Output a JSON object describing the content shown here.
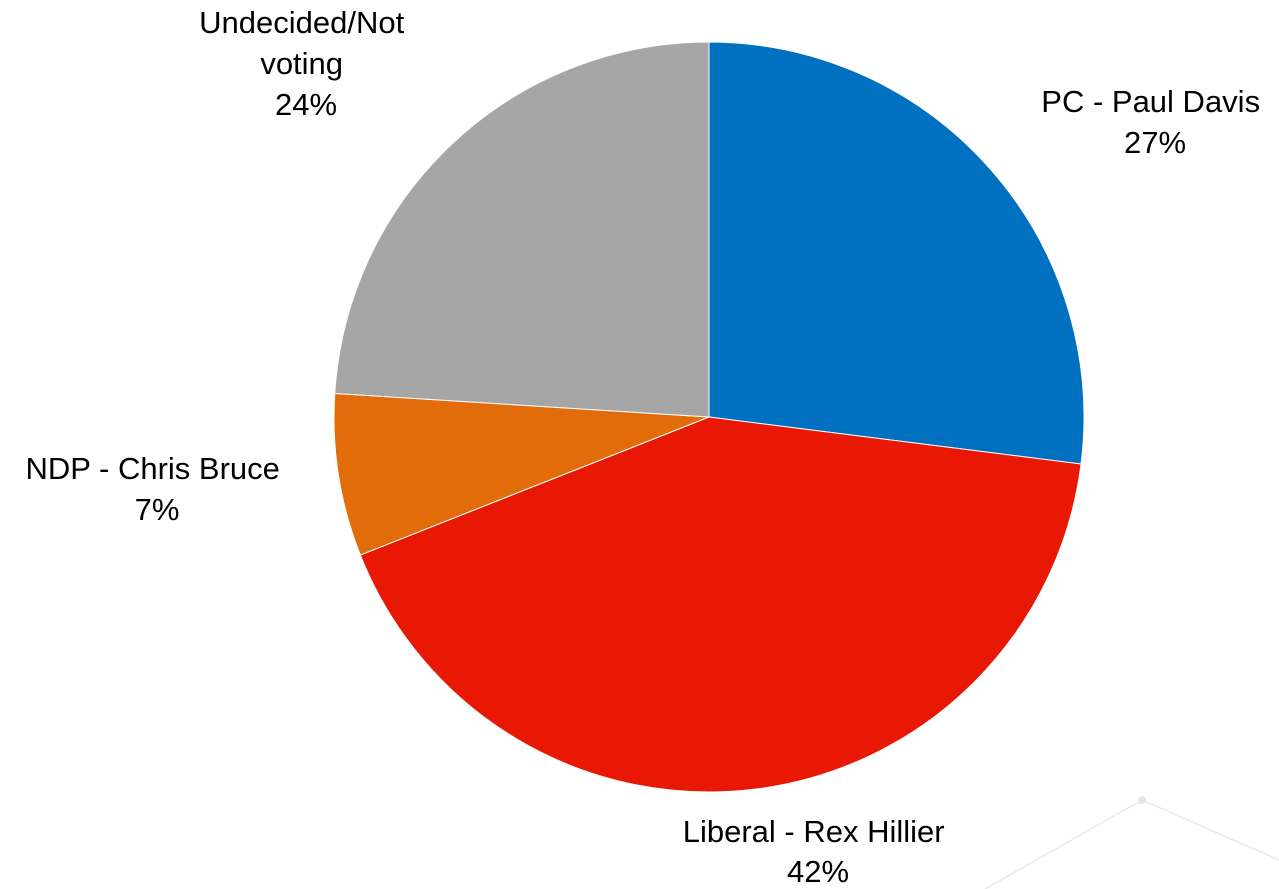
{
  "chart_data": {
    "type": "pie",
    "title": "",
    "legend": "none",
    "slices": [
      {
        "name": "PC - Paul Davis",
        "value": 27,
        "label": "27%",
        "color": "#0070C0"
      },
      {
        "name": "Liberal - Rex Hillier",
        "value": 42,
        "label": "42%",
        "color": "#E81805"
      },
      {
        "name": "NDP - Chris Bruce",
        "value": 7,
        "label": "7%",
        "color": "#E36C0A"
      },
      {
        "name": "Undecided/Not voting",
        "value": 24,
        "label": "24%",
        "color": "#A6A6A6"
      }
    ]
  }
}
